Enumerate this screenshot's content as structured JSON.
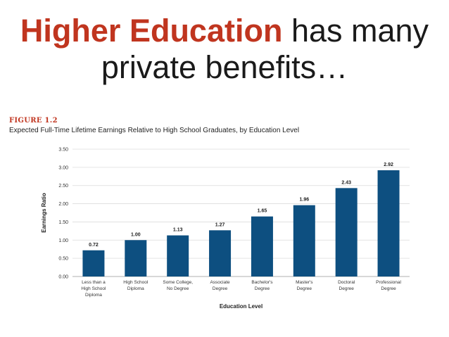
{
  "slide": {
    "title_accent": "Higher Education",
    "title_rest": " has many",
    "title_line2": "private benefits…"
  },
  "figure": {
    "label": "FIGURE 1.2",
    "caption": "Expected Full-Time Lifetime Earnings Relative to High School Graduates, by Education Level"
  },
  "colors": {
    "bar": "#0d4f80",
    "accent": "#c0351f",
    "grid": "#dcdcdc"
  },
  "chart_data": {
    "type": "bar",
    "categories": [
      [
        "Less than a",
        "High School",
        "Diploma"
      ],
      [
        "High School",
        "Diploma"
      ],
      [
        "Some College,",
        "No Degree"
      ],
      [
        "Associate",
        "Degree"
      ],
      [
        "Bachelor's",
        "Degree"
      ],
      [
        "Master's",
        "Degree"
      ],
      [
        "Doctoral",
        "Degree"
      ],
      [
        "Professional",
        "Degree"
      ]
    ],
    "values": [
      0.72,
      1.0,
      1.13,
      1.27,
      1.65,
      1.96,
      2.43,
      2.92
    ],
    "value_labels": [
      "0.72",
      "1.00",
      "1.13",
      "1.27",
      "1.65",
      "1.96",
      "2.43",
      "2.92"
    ],
    "yticks": [
      "0.00",
      "0.50",
      "1.00",
      "1.50",
      "2.00",
      "2.50",
      "3.00",
      "3.50"
    ],
    "ylim": [
      0,
      3.5
    ],
    "xlabel": "Education Level",
    "ylabel": "Earnings Ratio",
    "grid": true,
    "legend": "none"
  }
}
